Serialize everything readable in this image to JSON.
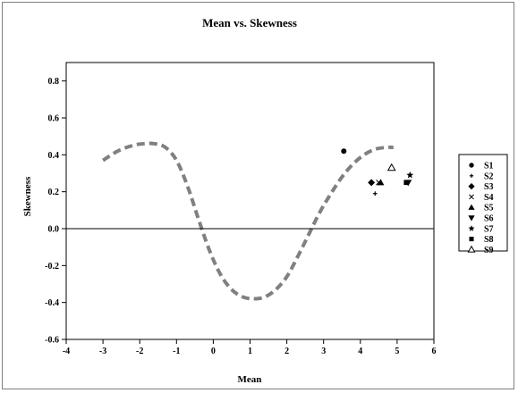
{
  "chart_data": {
    "type": "scatter",
    "title": "Mean vs. Skewness",
    "xlabel": "Mean",
    "ylabel": "Skewness",
    "xlim": [
      -4,
      6
    ],
    "ylim": [
      -0.6,
      0.9
    ],
    "xticks": [
      -4,
      -3,
      -2,
      -1,
      0,
      1,
      2,
      3,
      4,
      5,
      6
    ],
    "yticks": [
      -0.6,
      -0.4,
      -0.2,
      0.0,
      0.2,
      0.4,
      0.6,
      0.8
    ],
    "ytick_labels": [
      "-0.6",
      "-0.4",
      "-0.2",
      "0.0",
      "0.2",
      "0.4",
      "0.6",
      "0.8"
    ],
    "grid": false,
    "legend_position": "right",
    "series": [
      {
        "name": "S1",
        "marker": "circle",
        "x": [
          3.55
        ],
        "y": [
          0.42
        ]
      },
      {
        "name": "S2",
        "marker": "plus",
        "x": [
          4.4
        ],
        "y": [
          0.19
        ]
      },
      {
        "name": "S3",
        "marker": "diamond",
        "x": [
          4.3
        ],
        "y": [
          0.25
        ]
      },
      {
        "name": "S4",
        "marker": "x",
        "x": [
          4.5
        ],
        "y": [
          0.25
        ]
      },
      {
        "name": "S5",
        "marker": "triangle-up",
        "x": [
          4.55
        ],
        "y": [
          0.25
        ]
      },
      {
        "name": "S6",
        "marker": "triangle-down",
        "x": [
          5.3
        ],
        "y": [
          0.25
        ]
      },
      {
        "name": "S7",
        "marker": "star",
        "x": [
          5.35
        ],
        "y": [
          0.29
        ]
      },
      {
        "name": "S8",
        "marker": "square",
        "x": [
          5.25
        ],
        "y": [
          0.25
        ]
      },
      {
        "name": "S9",
        "marker": "triangle-open",
        "x": [
          4.85
        ],
        "y": [
          0.33
        ]
      }
    ],
    "reference_line": {
      "y": 0.0,
      "x_range": [
        -4,
        6
      ]
    },
    "dashed_curve": {
      "color": "#808080",
      "x": [
        -3.0,
        -2.6,
        -2.2,
        -1.9,
        -1.6,
        -1.3,
        -1.0,
        -0.7,
        -0.4,
        -0.1,
        0.2,
        0.5,
        0.8,
        1.1,
        1.4,
        1.7,
        2.0,
        2.3,
        2.6,
        2.9,
        3.2,
        3.5,
        3.8,
        4.1,
        4.4,
        4.7,
        4.9
      ],
      "y": [
        0.37,
        0.42,
        0.45,
        0.46,
        0.46,
        0.44,
        0.37,
        0.23,
        0.05,
        -0.12,
        -0.25,
        -0.33,
        -0.37,
        -0.38,
        -0.37,
        -0.33,
        -0.26,
        -0.15,
        -0.03,
        0.09,
        0.19,
        0.28,
        0.35,
        0.4,
        0.43,
        0.44,
        0.44
      ]
    }
  }
}
